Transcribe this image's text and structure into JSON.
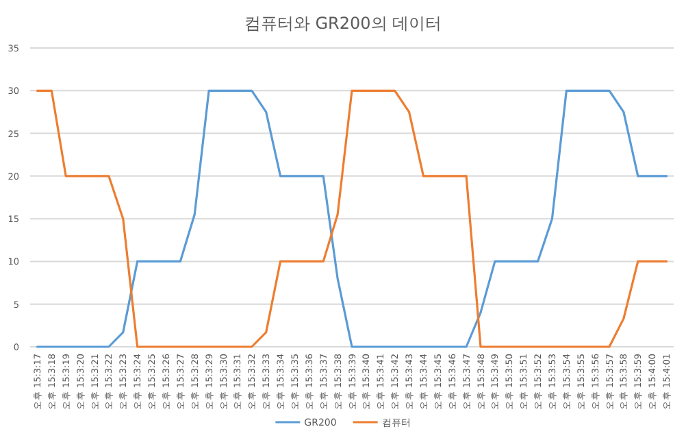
{
  "chart_data": {
    "type": "line",
    "title": "컴퓨터와 GR200의 데이터",
    "categories": [
      "오후 15:3:17",
      "오후 15:3:18",
      "오후 15:3:19",
      "오후 15:3:20",
      "오후 15:3:21",
      "오후 15:3:22",
      "오후 15:3:23",
      "오후 15:3:24",
      "오후 15:3:25",
      "오후 15:3:26",
      "오후 15:3:27",
      "오후 15:3:28",
      "오후 15:3:29",
      "오후 15:3:30",
      "오후 15:3:31",
      "오후 15:3:32",
      "오후 15:3:33",
      "오후 15:3:34",
      "오후 15:3:35",
      "오후 15:3:36",
      "오후 15:3:37",
      "오후 15:3:38",
      "오후 15:3:39",
      "오후 15:3:40",
      "오후 15:3:41",
      "오후 15:3:42",
      "오후 15:3:43",
      "오후 15:3:44",
      "오후 15:3:45",
      "오후 15:3:46",
      "오후 15:3:47",
      "오후 15:3:48",
      "오후 15:3:49",
      "오후 15:3:50",
      "오후 15:3:51",
      "오후 15:3:52",
      "오후 15:3:53",
      "오후 15:3:54",
      "오후 15:3:55",
      "오후 15:3:56",
      "오후 15:3:57",
      "오후 15:3:58",
      "오후 15:3:59",
      "오후 15:4:00",
      "오후 15:4:01"
    ],
    "series": [
      {
        "name": "GR200",
        "color": "#5b9bd5",
        "values": [
          0,
          0,
          0,
          0,
          0,
          0,
          1.7,
          10,
          10,
          10,
          10,
          15.5,
          30,
          30,
          30,
          30,
          27.5,
          20,
          20,
          20,
          20,
          8,
          0,
          0,
          0,
          0,
          0,
          0,
          0,
          0,
          0,
          4,
          10,
          10,
          10,
          10,
          15,
          30,
          30,
          30,
          30,
          27.5,
          20,
          20,
          20
        ]
      },
      {
        "name": "컴퓨터",
        "color": "#ed7d31",
        "values": [
          30,
          30,
          20,
          20,
          20,
          20,
          15,
          0,
          0,
          0,
          0,
          0,
          0,
          0,
          0,
          0,
          1.7,
          10,
          10,
          10,
          10,
          15.5,
          30,
          30,
          30,
          30,
          27.5,
          20,
          20,
          20,
          20,
          0,
          0,
          0,
          0,
          0,
          0,
          0,
          0,
          0,
          0,
          3.3,
          10,
          10,
          10
        ]
      }
    ],
    "ylim": [
      0,
      35
    ],
    "yticks": [
      0,
      5,
      10,
      15,
      20,
      25,
      30,
      35
    ],
    "grid": "y",
    "legend": "bottom"
  }
}
